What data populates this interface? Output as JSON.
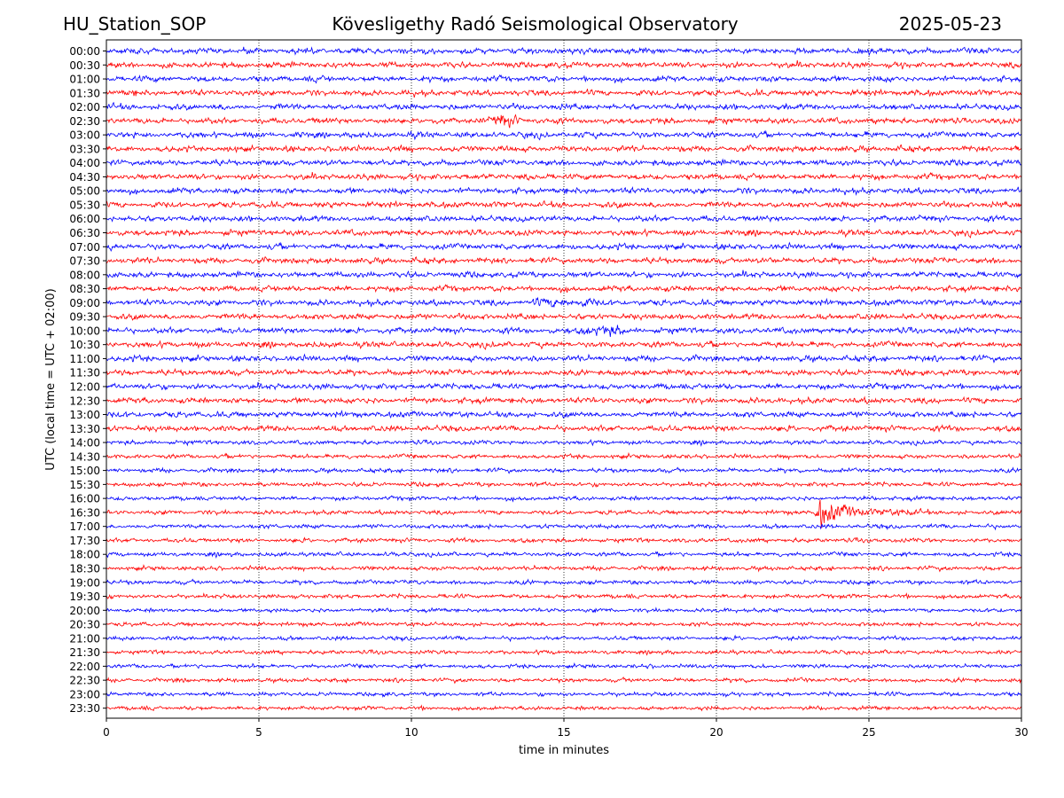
{
  "header": {
    "station": "HU_Station_SOP",
    "observatory": "Kövesligethy Radó Seismological Observatory",
    "date": "2025-05-23"
  },
  "chart_data": {
    "type": "line",
    "title": "Kövesligethy Radó Seismological Observatory",
    "xlabel": "time in minutes",
    "ylabel": "UTC (local time = UTC + 02:00)",
    "xlim": [
      0,
      30
    ],
    "xticks": [
      "0",
      "5",
      "10",
      "15",
      "20",
      "25",
      "30"
    ],
    "grid": "vertical dotted at x ticks",
    "colors": {
      "even_rows": "#0000ff",
      "odd_rows": "#ff0000"
    },
    "rows": [
      "00:00",
      "00:30",
      "01:00",
      "01:30",
      "02:00",
      "02:30",
      "03:00",
      "03:30",
      "04:00",
      "04:30",
      "05:00",
      "05:30",
      "06:00",
      "06:30",
      "07:00",
      "07:30",
      "08:00",
      "08:30",
      "09:00",
      "09:30",
      "10:00",
      "10:30",
      "11:00",
      "11:30",
      "12:00",
      "12:30",
      "13:00",
      "13:30",
      "14:00",
      "14:30",
      "15:00",
      "15:30",
      "16:00",
      "16:30",
      "17:00",
      "17:30",
      "18:00",
      "18:30",
      "19:00",
      "19:30",
      "20:00",
      "20:30",
      "21:00",
      "21:30",
      "22:00",
      "22:30",
      "23:00",
      "23:30"
    ],
    "events": [
      {
        "row": "02:30",
        "start_min": 12.6,
        "peak_min": 13.0,
        "end_min": 13.6,
        "relative_amplitude": 2.2
      },
      {
        "row": "16:30",
        "start_min": 23.2,
        "peak_min": 23.4,
        "end_min": 27.0,
        "relative_amplitude": 8.0
      },
      {
        "row": "09:00",
        "start_min": 14.0,
        "peak_min": 15.3,
        "end_min": 16.0,
        "relative_amplitude": 1.5
      },
      {
        "row": "10:00",
        "start_min": 15.5,
        "peak_min": 16.3,
        "end_min": 17.0,
        "relative_amplitude": 1.6
      }
    ]
  }
}
